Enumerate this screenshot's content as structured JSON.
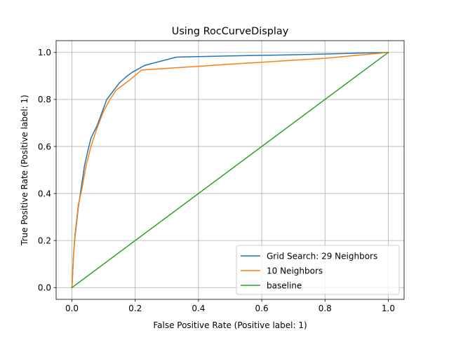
{
  "chart_data": {
    "type": "line",
    "title": "Using RocCurveDisplay",
    "xlabel": "False Positive Rate (Positive label: 1)",
    "ylabel": "True Positive Rate (Positive label: 1)",
    "xlim": [
      -0.05,
      1.05
    ],
    "ylim": [
      -0.05,
      1.05
    ],
    "xticks": [
      0.0,
      0.2,
      0.4,
      0.6,
      0.8,
      1.0
    ],
    "yticks": [
      0.0,
      0.2,
      0.4,
      0.6,
      0.8,
      1.0
    ],
    "xtick_labels": [
      "0.0",
      "0.2",
      "0.4",
      "0.6",
      "0.8",
      "1.0"
    ],
    "ytick_labels": [
      "0.0",
      "0.2",
      "0.4",
      "0.6",
      "0.8",
      "1.0"
    ],
    "grid": true,
    "legend_position": "lower-right",
    "series": [
      {
        "name": "Grid Search: 29 Neighbors",
        "color": "#1f77b4",
        "x": [
          0.0,
          0.002,
          0.005,
          0.01,
          0.02,
          0.03,
          0.04,
          0.05,
          0.06,
          0.08,
          0.11,
          0.13,
          0.15,
          0.17,
          0.19,
          0.23,
          0.33,
          0.5,
          0.7,
          0.85,
          1.0
        ],
        "y": [
          0.0,
          0.05,
          0.14,
          0.22,
          0.34,
          0.43,
          0.52,
          0.58,
          0.635,
          0.69,
          0.8,
          0.835,
          0.87,
          0.895,
          0.915,
          0.945,
          0.98,
          0.985,
          0.99,
          0.995,
          1.0
        ]
      },
      {
        "name": "10 Neighbors",
        "color": "#ff7f0e",
        "x": [
          0.0,
          0.005,
          0.01,
          0.02,
          0.03,
          0.045,
          0.06,
          0.08,
          0.1,
          0.12,
          0.14,
          0.18,
          0.22,
          0.5,
          0.8,
          1.0
        ],
        "y": [
          0.0,
          0.14,
          0.23,
          0.35,
          0.41,
          0.52,
          0.6,
          0.68,
          0.75,
          0.8,
          0.84,
          0.88,
          0.925,
          0.95,
          0.975,
          1.0
        ]
      },
      {
        "name": "baseline",
        "color": "#2ca02c",
        "x": [
          0.0,
          1.0
        ],
        "y": [
          0.0,
          1.0
        ]
      }
    ]
  }
}
